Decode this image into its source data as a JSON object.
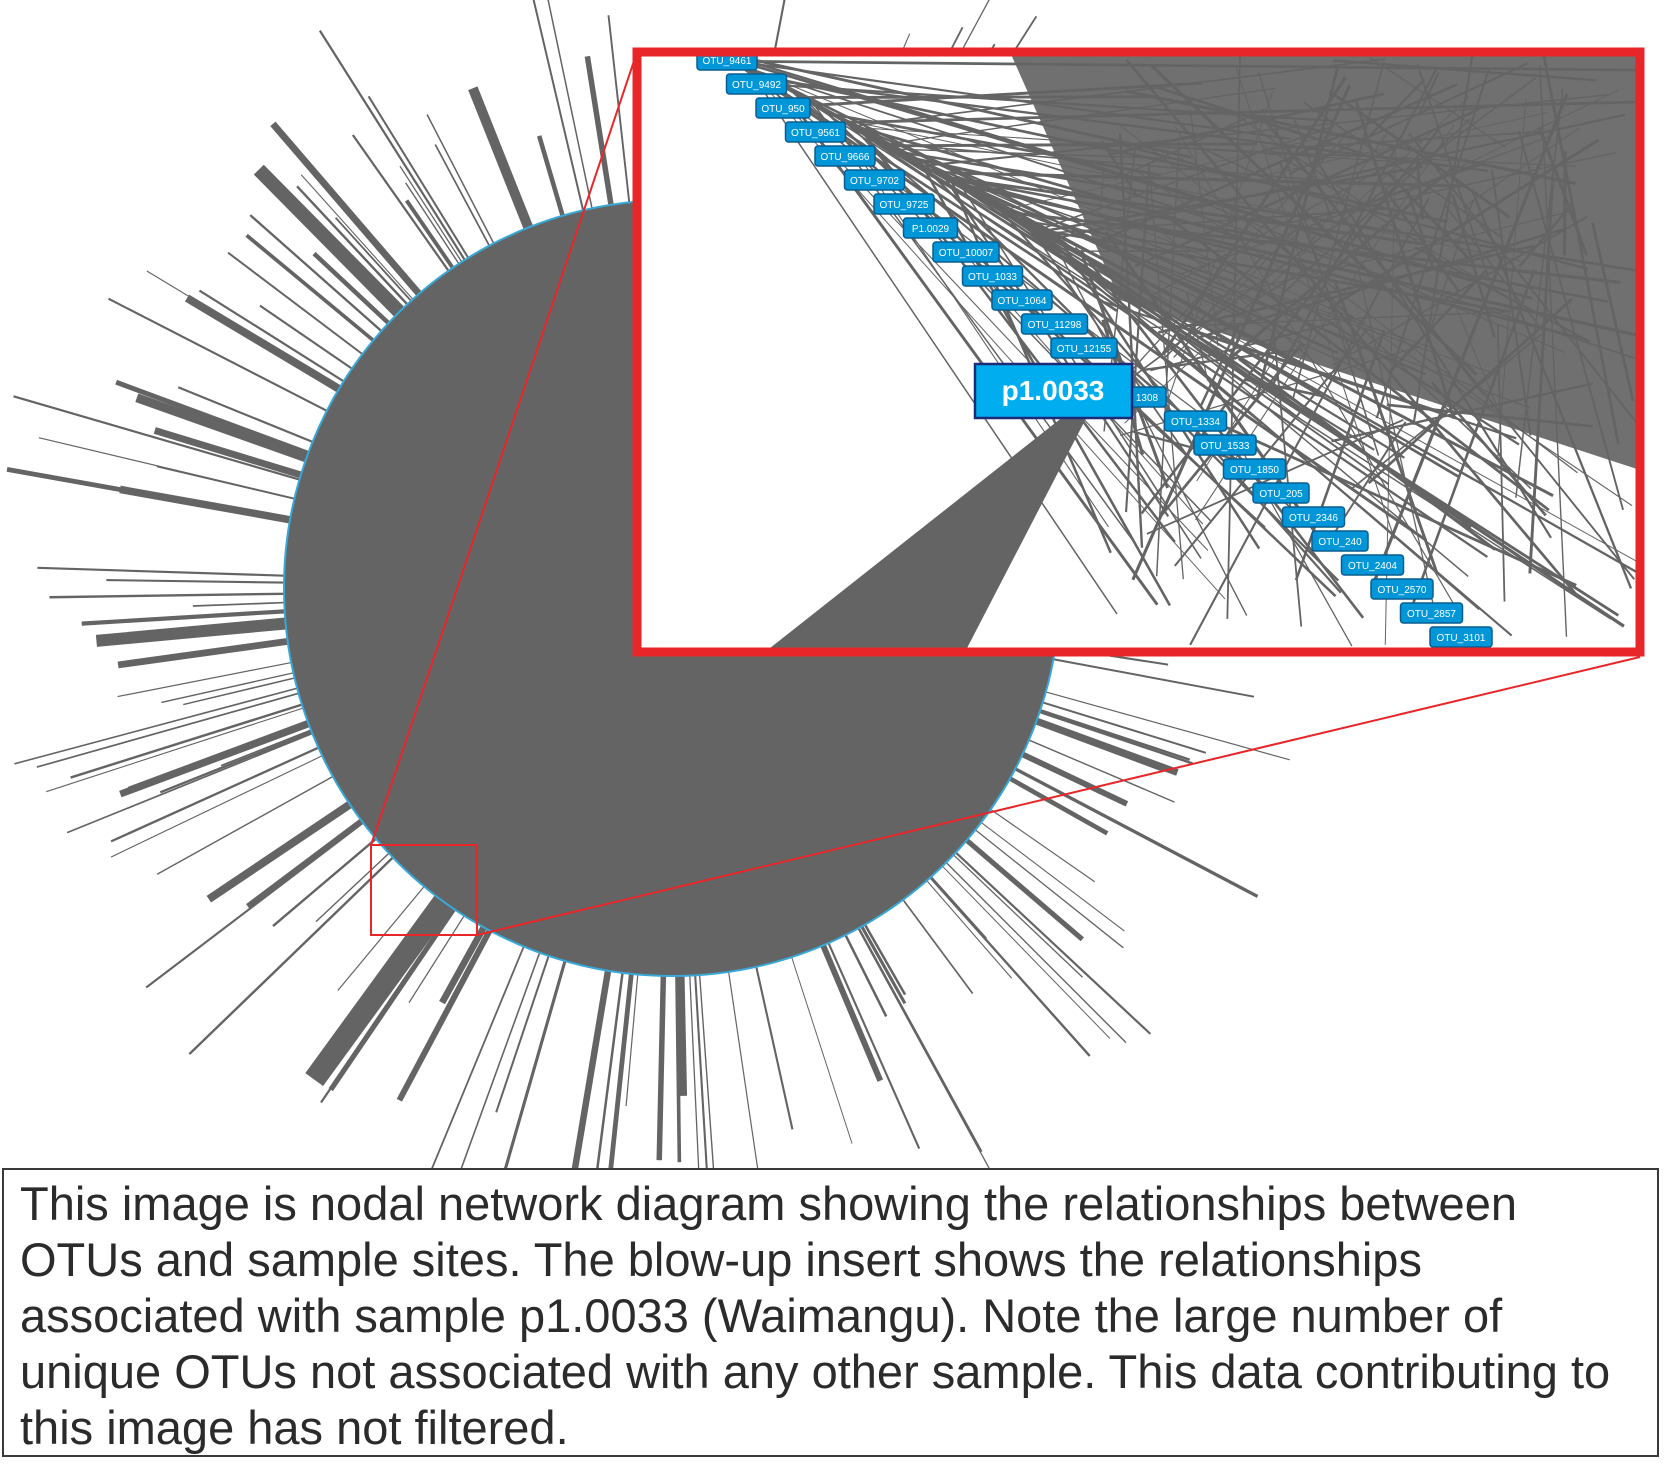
{
  "colors": {
    "edge": "#646464",
    "node_fill": "#0096d8",
    "node_border": "#0a5d8f",
    "highlight_fill": "#00aeef",
    "highlight_border": "#1c2a78",
    "zoom_frame": "#e8262a"
  },
  "inset": {
    "highlight_node": "p1.0033",
    "upper_labels": [
      "OTU_9461",
      "OTU_9492",
      "OTU_950",
      "OTU_9561",
      "OTU_9666",
      "OTU_9702",
      "OTU_9725",
      "P1.0029",
      "OTU_10007",
      "OTU_1033",
      "OTU_1064",
      "OTU_11298",
      "OTU_12155"
    ],
    "lower_labels": [
      "1308",
      "OTU_1334",
      "OTU_1533",
      "OTU_1850",
      "OTU_205",
      "OTU_2346",
      "OTU_240",
      "OTU_2404",
      "OTU_2570",
      "OTU_2857",
      "OTU_3101"
    ]
  },
  "caption": {
    "text": "This image is nodal network diagram showing the relationships between OTUs and sample sites. The blow-up insert shows the relationships associated with sample p1.0033 (Waimangu). Note the large number of unique OTUs not associated with any other sample. This data contributing to this image has not filtered."
  }
}
